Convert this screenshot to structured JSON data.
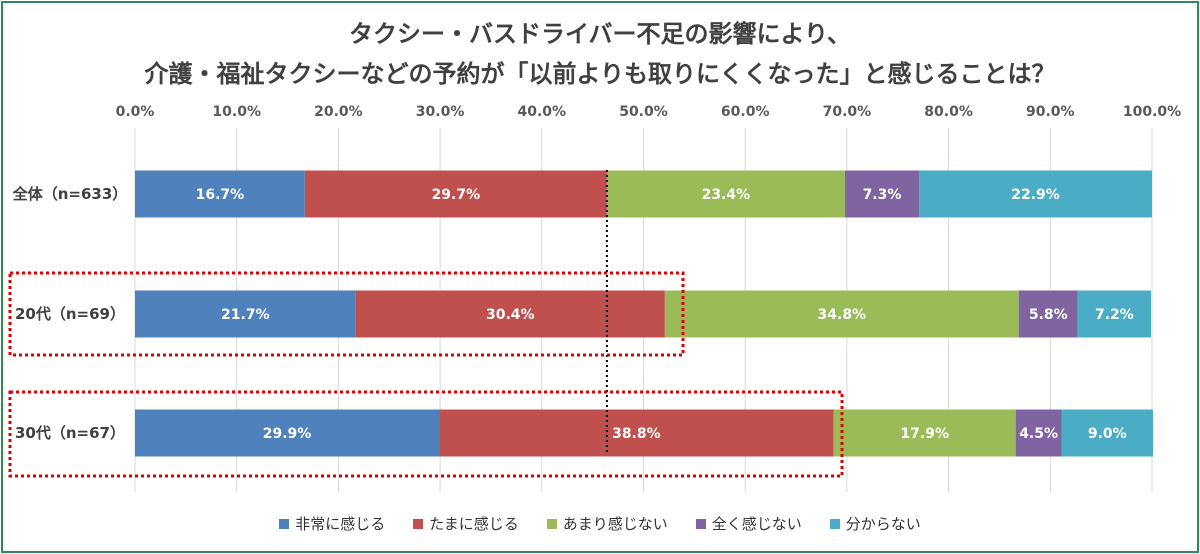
{
  "title_line1": "タクシー・バスドライバー不足の影響により、",
  "title_line2": "介護・福祉タクシーなどの予約が「以前よりも取りにくくなった」と感じることは？",
  "chart_data": {
    "type": "bar",
    "orientation": "horizontal",
    "stacked": "percent",
    "xlim": [
      0,
      100
    ],
    "x_ticks": [
      "0.0%",
      "10.0%",
      "20.0%",
      "30.0%",
      "40.0%",
      "50.0%",
      "60.0%",
      "70.0%",
      "80.0%",
      "90.0%",
      "100.0%"
    ],
    "categories": [
      "全体（n=633）",
      "20代（n=69）",
      "30代（n=67）"
    ],
    "series": [
      {
        "name": "非常に感じる",
        "color": "#4f81bd",
        "values": [
          16.7,
          21.7,
          29.9
        ]
      },
      {
        "name": "たまに感じる",
        "color": "#c0504d",
        "values": [
          29.7,
          30.4,
          38.8
        ]
      },
      {
        "name": "あまり感じない",
        "color": "#9bbb59",
        "values": [
          23.4,
          34.8,
          17.9
        ]
      },
      {
        "name": "全く感じない",
        "color": "#8064a2",
        "values": [
          7.3,
          5.8,
          4.5
        ]
      },
      {
        "name": "分からない",
        "color": "#4bacc6",
        "values": [
          22.9,
          7.2,
          9.0
        ]
      }
    ],
    "labels": [
      [
        "16.7%",
        "29.7%",
        "23.4%",
        "7.3%",
        "22.9%"
      ],
      [
        "21.7%",
        "30.4%",
        "34.8%",
        "5.8%",
        "7.2%"
      ],
      [
        "29.9%",
        "38.8%",
        "17.9%",
        "4.5%",
        "9.0%"
      ]
    ],
    "reference_line_value": 46.4,
    "highlighted_categories": [
      "20代（n=69）",
      "30代（n=67）"
    ],
    "grid": true,
    "legend_position": "bottom"
  }
}
